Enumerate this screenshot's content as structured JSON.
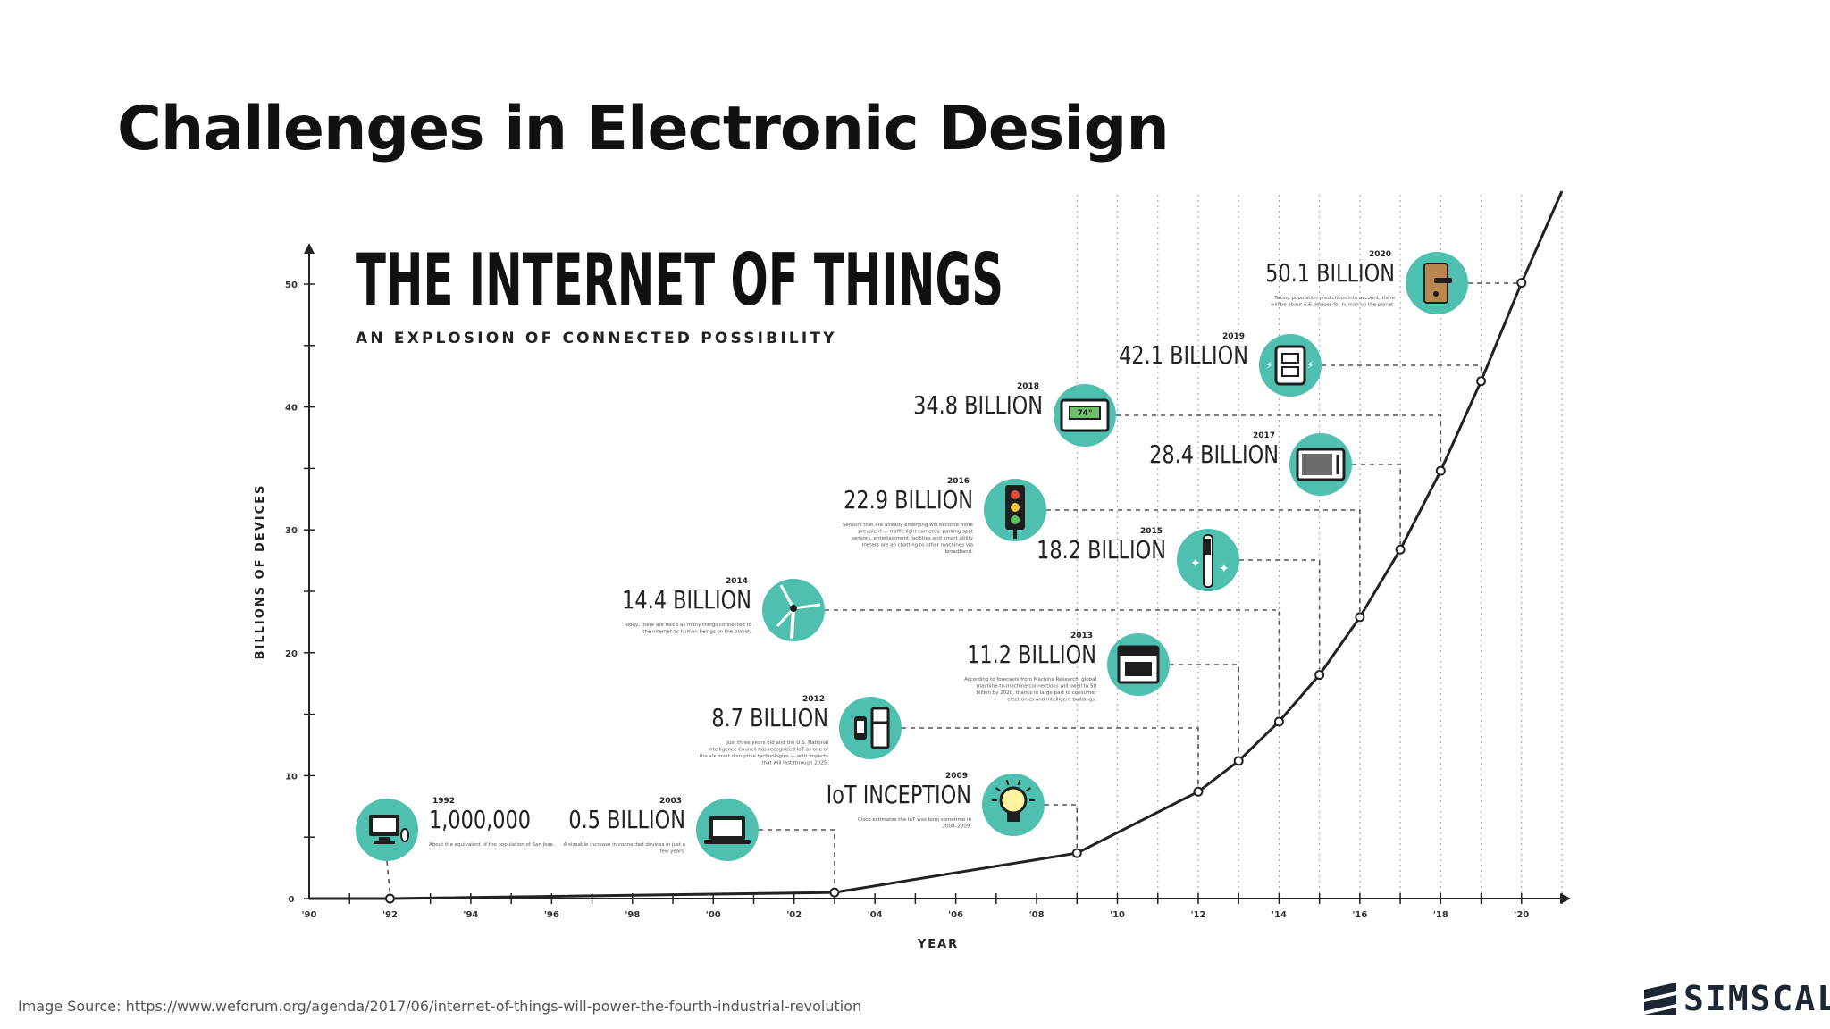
{
  "slide": {
    "title": "Challenges in Electronic Design",
    "source": "Image Source: https://www.weforum.org/agenda/2017/06/internet-of-things-will-power-the-fourth-industrial-revolution",
    "logo_text": "SIMSCALE"
  },
  "colors": {
    "accent": "#4fc0b0",
    "line": "#222222",
    "grid": "#b0b0b0",
    "logo": "#1d2633"
  },
  "chart_data": {
    "type": "line",
    "title": "THE INTERNET OF THINGS",
    "subtitle": "AN EXPLOSION OF CONNECTED POSSIBILITY",
    "xlabel": "YEAR",
    "ylabel": "BILLIONS OF DEVICES",
    "xlim": [
      1990,
      2021
    ],
    "ylim": [
      0,
      50
    ],
    "xticks": [
      {
        "year": 1990,
        "label": "'90"
      },
      {
        "year": 1992,
        "label": "'92"
      },
      {
        "year": 1994,
        "label": "'94"
      },
      {
        "year": 1996,
        "label": "'96"
      },
      {
        "year": 1998,
        "label": "'98"
      },
      {
        "year": 2000,
        "label": "'00"
      },
      {
        "year": 2002,
        "label": "'02"
      },
      {
        "year": 2004,
        "label": "'04"
      },
      {
        "year": 2006,
        "label": "'06"
      },
      {
        "year": 2008,
        "label": "'08"
      },
      {
        "year": 2010,
        "label": "'10"
      },
      {
        "year": 2012,
        "label": "'12"
      },
      {
        "year": 2014,
        "label": "'14"
      },
      {
        "year": 2016,
        "label": "'16"
      },
      {
        "year": 2018,
        "label": "'18"
      },
      {
        "year": 2020,
        "label": "'20"
      }
    ],
    "yticks": [
      {
        "value": 0,
        "label": "0"
      },
      {
        "value": 10,
        "label": "10"
      },
      {
        "value": 20,
        "label": "20"
      },
      {
        "value": 30,
        "label": "30"
      },
      {
        "value": 40,
        "label": "40"
      },
      {
        "value": 50,
        "label": "50"
      }
    ],
    "points": [
      {
        "year": 1992,
        "value": 0.001,
        "year_label": "1992",
        "label": "1,000,000",
        "icon": "computer-icon",
        "note": "About the equivalent of the population of San Jose."
      },
      {
        "year": 2003,
        "value": 0.5,
        "year_label": "2003",
        "label": "0.5 BILLION",
        "icon": "laptop-icon",
        "note": "A sizeable increase in connected devices in just a few years."
      },
      {
        "year": 2009,
        "value": 3.7,
        "year_label": "2009",
        "label": "IoT INCEPTION",
        "icon": "lightbulb-icon",
        "note": "Cisco estimates the IoT was born sometime in 2008–2009."
      },
      {
        "year": 2012,
        "value": 8.7,
        "year_label": "2012",
        "label": "8.7 BILLION",
        "icon": "smartwatch-fridge-icon",
        "note": "Just three years old and the U.S. National Intelligence Council has recognized IoT as one of the six most disruptive technologies — with impacts that will last through 2025."
      },
      {
        "year": 2013,
        "value": 11.2,
        "year_label": "2013",
        "label": "11.2 BILLION",
        "icon": "oven-icon",
        "note": "According to forecasts from Machina Research, global machine-to-machine connections will swell to 50 billion by 2020, thanks in large part to consumer electronics and intelligent buildings."
      },
      {
        "year": 2014,
        "value": 14.4,
        "year_label": "2014",
        "label": "14.4 BILLION",
        "icon": "wind-turbine-icon",
        "note": "Today, there are twice as many things connected to the internet as human beings on the planet."
      },
      {
        "year": 2015,
        "value": 18.2,
        "year_label": "2015",
        "label": "18.2 BILLION",
        "icon": "toothbrush-icon",
        "note": ""
      },
      {
        "year": 2016,
        "value": 22.9,
        "year_label": "2016",
        "label": "22.9 BILLION",
        "icon": "traffic-light-icon",
        "note": "Sensors that are already emerging will become more prevalent — traffic light cameras, parking spot sensors, entertainment facilities and smart utility meters are all chatting to other machines via broadband."
      },
      {
        "year": 2017,
        "value": 28.4,
        "year_label": "2017",
        "label": "28.4 BILLION",
        "icon": "microwave-icon",
        "note": ""
      },
      {
        "year": 2018,
        "value": 34.8,
        "year_label": "2018",
        "label": "34.8 BILLION",
        "icon": "thermostat-icon",
        "note": ""
      },
      {
        "year": 2019,
        "value": 42.1,
        "year_label": "2019",
        "label": "42.1 BILLION",
        "icon": "smart-outlet-icon",
        "note": ""
      },
      {
        "year": 2020,
        "value": 50.1,
        "year_label": "2020",
        "label": "50.1 BILLION",
        "icon": "door-lock-icon",
        "note": "Taking population predictions into account, there will be about 6.6 devices for human on the planet."
      }
    ]
  }
}
